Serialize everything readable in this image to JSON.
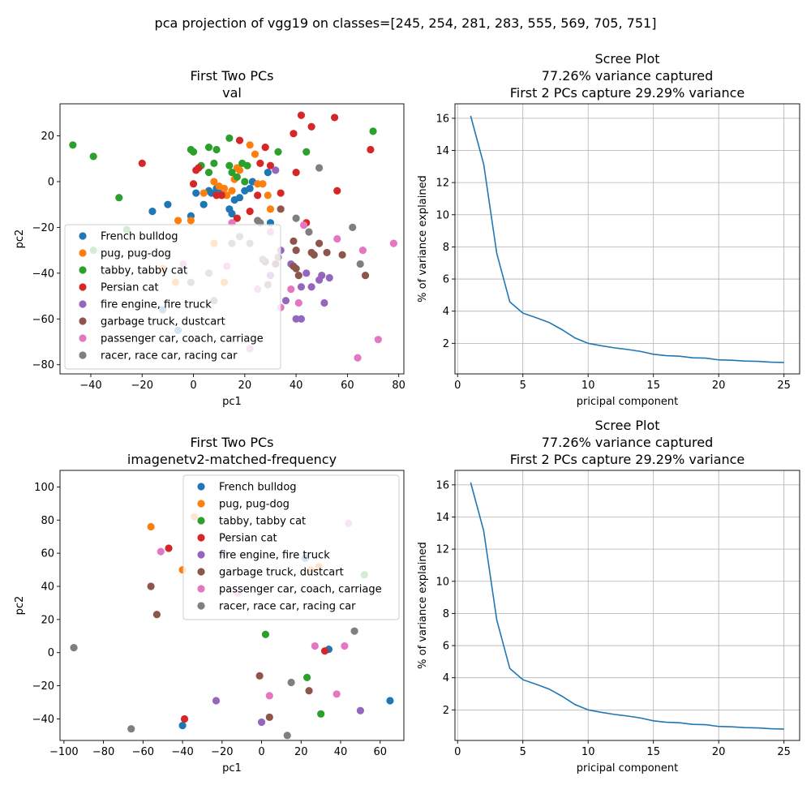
{
  "suptitle": "pca projection of vgg19 on classes=[245, 254, 281, 283, 555, 569, 705, 751]",
  "legend_labels": [
    "French bulldog",
    "pug, pug-dog",
    "tabby, tabby cat",
    "Persian cat",
    "fire engine, fire truck",
    "garbage truck, dustcart",
    "passenger car, coach, carriage",
    "racer, race car, racing car"
  ],
  "class_colors": [
    "#1f77b4",
    "#ff7f0e",
    "#2ca02c",
    "#d62728",
    "#9467bd",
    "#8c564b",
    "#e377c2",
    "#7f7f7f"
  ],
  "chart_data": [
    {
      "type": "scatter",
      "title": "First Two PCs\nval",
      "xlabel": "pc1",
      "ylabel": "pc2",
      "xlim": [
        -52,
        82
      ],
      "ylim": [
        -84,
        34
      ],
      "xticks": [
        -40,
        -20,
        0,
        20,
        40,
        60,
        80
      ],
      "yticks": [
        -80,
        -60,
        -40,
        -20,
        0,
        20
      ],
      "grid": false,
      "legend": "lower-left",
      "series": [
        {
          "name": "French bulldog",
          "points": [
            [
              -16,
              -13
            ],
            [
              -10,
              -10
            ],
            [
              1,
              -5
            ],
            [
              4,
              -10
            ],
            [
              6,
              -4
            ],
            [
              7,
              -5
            ],
            [
              9,
              -3
            ],
            [
              11,
              -5
            ],
            [
              14,
              -12
            ],
            [
              15,
              -14
            ],
            [
              16,
              -8
            ],
            [
              18,
              -7
            ],
            [
              20,
              -4
            ],
            [
              22,
              -3
            ],
            [
              23,
              0
            ],
            [
              29,
              4
            ],
            [
              30,
              -18
            ],
            [
              -12,
              -56
            ],
            [
              -6,
              -65
            ],
            [
              -1,
              -15
            ]
          ]
        },
        {
          "name": "pug, pug-dog",
          "points": [
            [
              -6,
              -17
            ],
            [
              -1,
              -17
            ],
            [
              4,
              -5
            ],
            [
              8,
              0
            ],
            [
              10,
              -2
            ],
            [
              12,
              -3
            ],
            [
              13,
              -6
            ],
            [
              15,
              -4
            ],
            [
              16,
              1
            ],
            [
              17,
              6
            ],
            [
              18,
              5
            ],
            [
              22,
              16
            ],
            [
              24,
              12
            ],
            [
              25,
              -1
            ],
            [
              27,
              -1
            ],
            [
              29,
              -6
            ],
            [
              30,
              -12
            ],
            [
              -7,
              -44
            ],
            [
              -12,
              -38
            ],
            [
              12,
              -44
            ],
            [
              8,
              -27
            ]
          ]
        },
        {
          "name": "tabby, tabby cat",
          "points": [
            [
              -47,
              16
            ],
            [
              -39,
              11
            ],
            [
              -29,
              -7
            ],
            [
              -1,
              14
            ],
            [
              0,
              13
            ],
            [
              3,
              7
            ],
            [
              6,
              15
            ],
            [
              9,
              14
            ],
            [
              14,
              19
            ],
            [
              14,
              7
            ],
            [
              15,
              4
            ],
            [
              17,
              2
            ],
            [
              19,
              8
            ],
            [
              20,
              0
            ],
            [
              21,
              7
            ],
            [
              33,
              13
            ],
            [
              44,
              13
            ],
            [
              70,
              22
            ],
            [
              -39,
              -30
            ],
            [
              -26,
              -21
            ],
            [
              6,
              4
            ],
            [
              8,
              8
            ]
          ]
        },
        {
          "name": "Persian cat",
          "points": [
            [
              -20,
              8
            ],
            [
              0,
              -1
            ],
            [
              1,
              5
            ],
            [
              2,
              6
            ],
            [
              9,
              -6
            ],
            [
              11,
              -6
            ],
            [
              18,
              18
            ],
            [
              22,
              -13
            ],
            [
              25,
              -6
            ],
            [
              26,
              8
            ],
            [
              28,
              15
            ],
            [
              30,
              7
            ],
            [
              34,
              -5
            ],
            [
              39,
              21
            ],
            [
              40,
              4
            ],
            [
              42,
              29
            ],
            [
              46,
              24
            ],
            [
              55,
              28
            ],
            [
              56,
              -4
            ],
            [
              69,
              14
            ],
            [
              17,
              -16
            ],
            [
              44,
              -18
            ]
          ]
        },
        {
          "name": "fire engine, fire truck",
          "points": [
            [
              32,
              5
            ],
            [
              36,
              -52
            ],
            [
              38,
              -36
            ],
            [
              40,
              -60
            ],
            [
              42,
              -60
            ],
            [
              42,
              -46
            ],
            [
              44,
              -40
            ],
            [
              46,
              -46
            ],
            [
              49,
              -43
            ],
            [
              50,
              -41
            ],
            [
              51,
              -53
            ],
            [
              53,
              -42
            ],
            [
              30,
              -41
            ],
            [
              34,
              -30
            ]
          ]
        },
        {
          "name": "garbage truck, dustcart",
          "points": [
            [
              34,
              -12
            ],
            [
              39,
              -26
            ],
            [
              39,
              -37
            ],
            [
              40,
              -38
            ],
            [
              41,
              -41
            ],
            [
              46,
              -31
            ],
            [
              47,
              -32
            ],
            [
              49,
              -27
            ],
            [
              52,
              -31
            ],
            [
              58,
              -32
            ],
            [
              67,
              -41
            ],
            [
              40,
              -30
            ],
            [
              28,
              -35
            ],
            [
              32,
              -36
            ]
          ]
        },
        {
          "name": "passenger car, coach, carriage",
          "points": [
            [
              -4,
              -36
            ],
            [
              13,
              -37
            ],
            [
              15,
              -18
            ],
            [
              22,
              -73
            ],
            [
              34,
              -55
            ],
            [
              38,
              -47
            ],
            [
              41,
              -53
            ],
            [
              56,
              -25
            ],
            [
              66,
              -30
            ],
            [
              64,
              -77
            ],
            [
              72,
              -69
            ],
            [
              78,
              -27
            ],
            [
              43,
              -19
            ],
            [
              25,
              -47
            ],
            [
              30,
              -22
            ]
          ]
        },
        {
          "name": "racer, race car, racing car",
          "points": [
            [
              25,
              -17
            ],
            [
              26,
              -18
            ],
            [
              40,
              -16
            ],
            [
              45,
              -22
            ],
            [
              49,
              6
            ],
            [
              62,
              -20
            ],
            [
              65,
              -36
            ],
            [
              -1,
              -44
            ],
            [
              6,
              -40
            ],
            [
              15,
              -27
            ],
            [
              22,
              -27
            ],
            [
              27,
              -34
            ],
            [
              33,
              -33
            ],
            [
              29,
              -45
            ],
            [
              8,
              -52
            ],
            [
              18,
              -24
            ]
          ]
        }
      ]
    },
    {
      "type": "line",
      "title": "Scree Plot\n77.26% variance captured\nFirst 2 PCs capture 29.29% variance",
      "xlabel": "pricipal component",
      "ylabel": "% of variance explained",
      "xlim": [
        -0.2,
        26.2
      ],
      "ylim": [
        0.1,
        16.9
      ],
      "xticks": [
        0,
        5,
        10,
        15,
        20,
        25
      ],
      "yticks": [
        2,
        4,
        6,
        8,
        10,
        12,
        14,
        16
      ],
      "grid": true,
      "x": [
        1,
        2,
        3,
        4,
        5,
        6,
        7,
        8,
        9,
        10,
        11,
        12,
        13,
        14,
        15,
        16,
        17,
        18,
        19,
        20,
        21,
        22,
        23,
        24,
        25
      ],
      "values": [
        16.15,
        13.14,
        7.6,
        4.58,
        3.88,
        3.6,
        3.3,
        2.85,
        2.33,
        2.0,
        1.85,
        1.72,
        1.62,
        1.5,
        1.32,
        1.23,
        1.2,
        1.1,
        1.08,
        0.97,
        0.95,
        0.9,
        0.88,
        0.83,
        0.81
      ]
    },
    {
      "type": "scatter",
      "title": "First Two PCs\nimagenetv2-matched-frequency",
      "xlabel": "pc1",
      "ylabel": "pc2",
      "xlim": [
        -102,
        72
      ],
      "ylim": [
        -53,
        110
      ],
      "xticks": [
        -100,
        -80,
        -60,
        -40,
        -20,
        0,
        20,
        40,
        60
      ],
      "yticks": [
        -40,
        -20,
        0,
        20,
        40,
        60,
        80,
        100
      ],
      "grid": false,
      "legend": "upper-right",
      "series": [
        {
          "name": "French bulldog",
          "points": [
            [
              -40,
              -44
            ],
            [
              34,
              2
            ],
            [
              65,
              -29
            ],
            [
              22,
              57
            ]
          ]
        },
        {
          "name": "pug, pug-dog",
          "points": [
            [
              -56,
              76
            ],
            [
              -40,
              50
            ],
            [
              -34,
              82
            ],
            [
              25,
              50
            ],
            [
              29,
              52
            ]
          ]
        },
        {
          "name": "tabby, tabby cat",
          "points": [
            [
              2,
              11
            ],
            [
              23,
              -15
            ],
            [
              30,
              -37
            ],
            [
              52,
              47
            ]
          ]
        },
        {
          "name": "Persian cat",
          "points": [
            [
              -47,
              63
            ],
            [
              -39,
              -40
            ],
            [
              32,
              1
            ]
          ]
        },
        {
          "name": "fire engine, fire truck",
          "points": [
            [
              -23,
              -29
            ],
            [
              0,
              -42
            ],
            [
              50,
              -35
            ],
            [
              -19,
              60
            ]
          ]
        },
        {
          "name": "garbage truck, dustcart",
          "points": [
            [
              -56,
              40
            ],
            [
              -53,
              23
            ],
            [
              -1,
              -14
            ],
            [
              4,
              -39
            ],
            [
              24,
              -23
            ]
          ]
        },
        {
          "name": "passenger car, coach, carriage",
          "points": [
            [
              -51,
              61
            ],
            [
              4,
              -26
            ],
            [
              27,
              4
            ],
            [
              38,
              -25
            ],
            [
              42,
              4
            ],
            [
              44,
              78
            ],
            [
              -12,
              36
            ]
          ]
        },
        {
          "name": "racer, race car, racing car",
          "points": [
            [
              -95,
              3
            ],
            [
              -66,
              -46
            ],
            [
              13,
              -50
            ],
            [
              15,
              -18
            ],
            [
              47,
              13
            ]
          ]
        }
      ]
    },
    {
      "type": "line",
      "title": "Scree Plot\n77.26% variance captured\nFirst 2 PCs capture 29.29% variance",
      "xlabel": "pricipal component",
      "ylabel": "% of variance explained",
      "xlim": [
        -0.2,
        26.2
      ],
      "ylim": [
        0.1,
        16.9
      ],
      "xticks": [
        0,
        5,
        10,
        15,
        20,
        25
      ],
      "yticks": [
        2,
        4,
        6,
        8,
        10,
        12,
        14,
        16
      ],
      "grid": true,
      "x": [
        1,
        2,
        3,
        4,
        5,
        6,
        7,
        8,
        9,
        10,
        11,
        12,
        13,
        14,
        15,
        16,
        17,
        18,
        19,
        20,
        21,
        22,
        23,
        24,
        25
      ],
      "values": [
        16.15,
        13.14,
        7.6,
        4.58,
        3.88,
        3.6,
        3.3,
        2.85,
        2.33,
        2.0,
        1.85,
        1.72,
        1.62,
        1.5,
        1.32,
        1.23,
        1.2,
        1.1,
        1.08,
        0.97,
        0.95,
        0.9,
        0.88,
        0.83,
        0.81
      ]
    }
  ]
}
